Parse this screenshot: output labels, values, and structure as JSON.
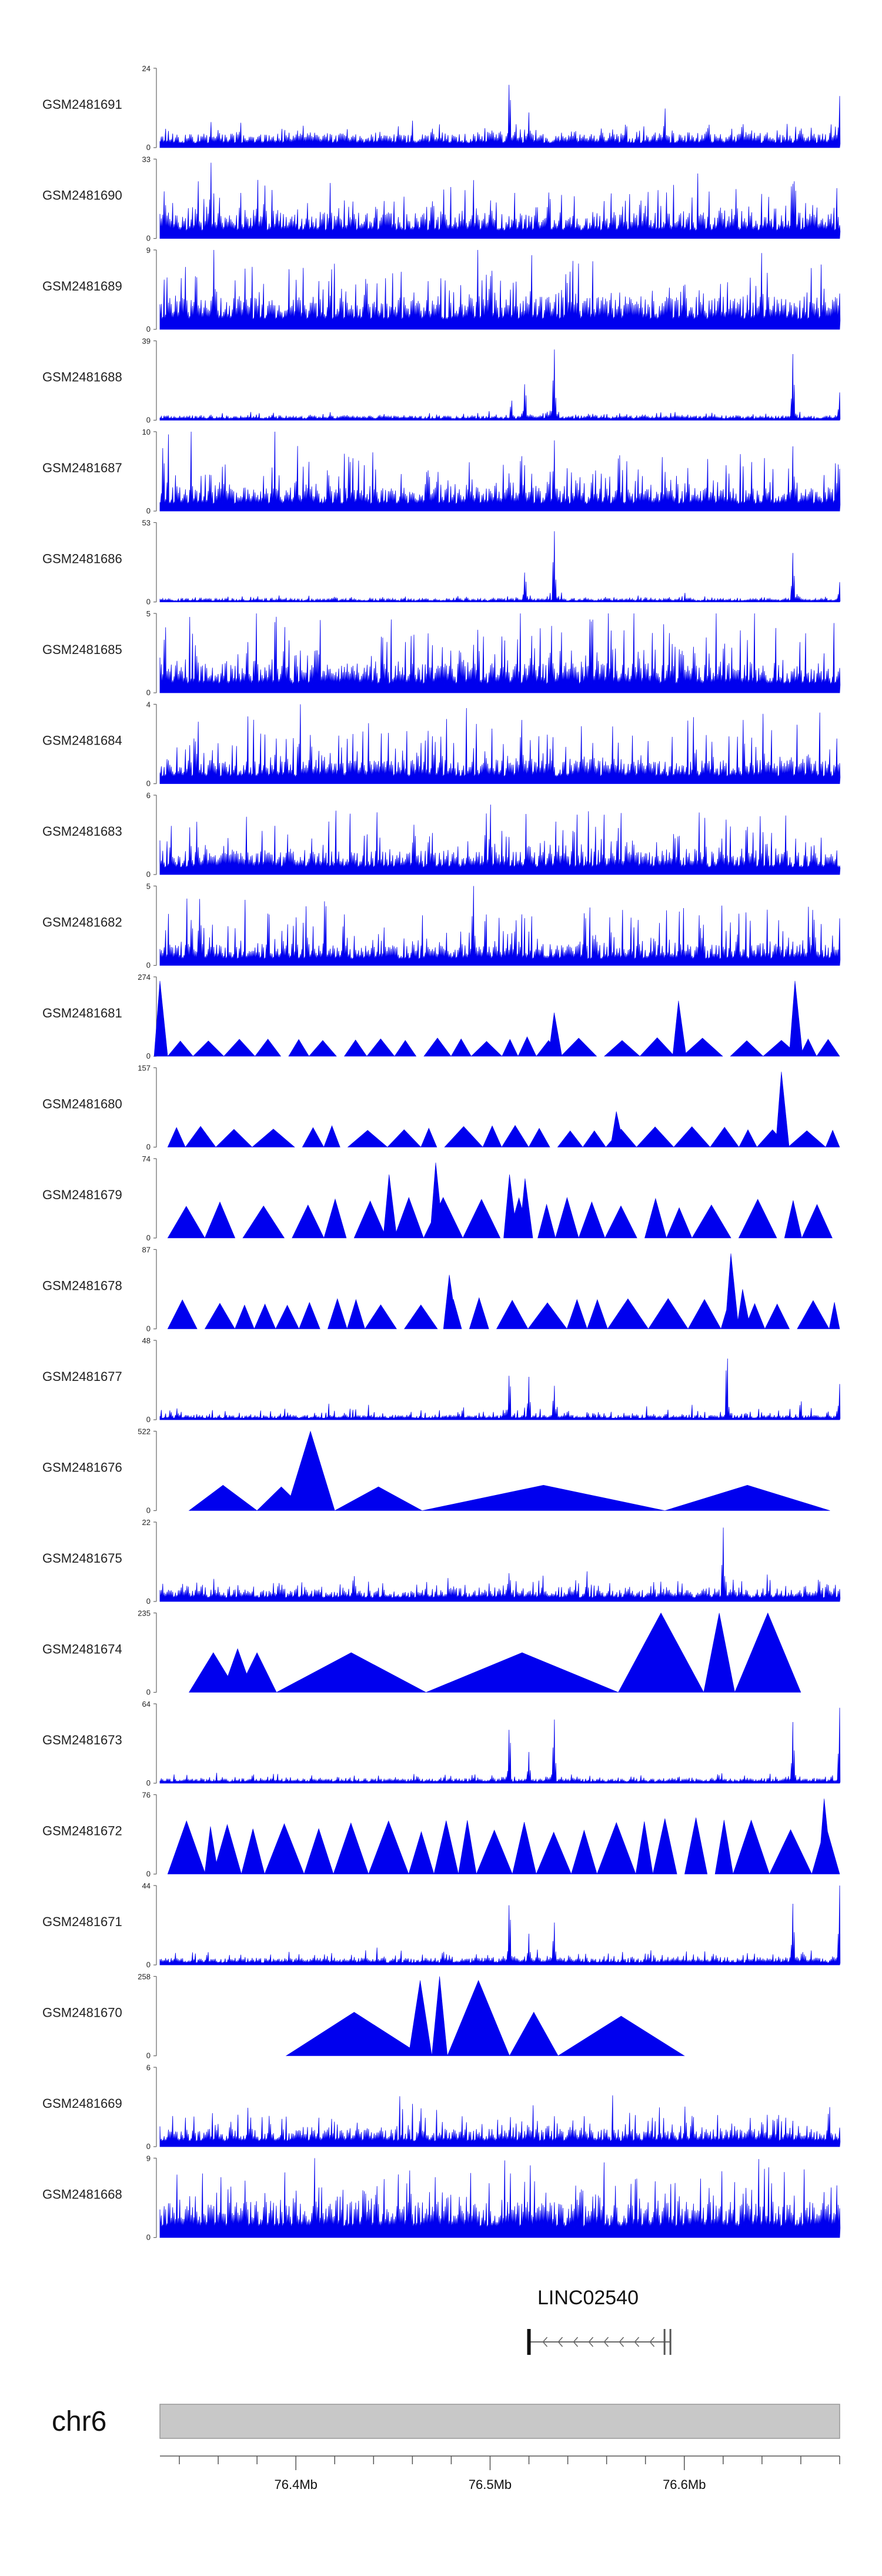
{
  "colors": {
    "signal": "#0000ee",
    "ideogram": "#c8c8c8",
    "axis": "#555555"
  },
  "chart_data": {
    "type": "area",
    "title": "",
    "xlabel": "chr6",
    "xlim": [
      76.33,
      76.68
    ],
    "x_unit": "Mb",
    "x_ticks": [
      "76.4Mb",
      "76.5Mb",
      "76.6Mb"
    ],
    "x_tick_values": [
      76.4,
      76.5,
      76.6
    ],
    "tracks": [
      {
        "name": "GSM2481691",
        "ymax": 24,
        "style": "dense",
        "seed": 91,
        "level": 0.12,
        "noise": 0.18,
        "peaks": [
          [
            76.51,
            1.0
          ],
          [
            76.52,
            0.45
          ],
          [
            76.59,
            0.55
          ],
          [
            76.68,
            0.65
          ],
          [
            76.57,
            0.4
          ],
          [
            76.63,
            0.4
          ]
        ]
      },
      {
        "name": "GSM2481690",
        "ymax": 33,
        "style": "dense",
        "seed": 90,
        "level": 0.22,
        "noise": 0.55,
        "peaks": [
          [
            76.47,
            0.62
          ],
          [
            76.53,
            0.7
          ],
          [
            76.5,
            0.5
          ]
        ]
      },
      {
        "name": "GSM2481689",
        "ymax": 9,
        "style": "dense",
        "seed": 89,
        "level": 0.28,
        "noise": 0.7,
        "peaks": [
          [
            76.5,
            0.85
          ],
          [
            76.6,
            0.8
          ]
        ]
      },
      {
        "name": "GSM2481688",
        "ymax": 39,
        "style": "dense",
        "seed": 88,
        "level": 0.04,
        "noise": 0.06,
        "peaks": [
          [
            76.518,
            0.55
          ],
          [
            76.533,
            1.0
          ],
          [
            76.656,
            0.92
          ],
          [
            76.68,
            0.35
          ],
          [
            76.511,
            0.3
          ]
        ]
      },
      {
        "name": "GSM2481687",
        "ymax": 10,
        "style": "dense",
        "seed": 87,
        "level": 0.2,
        "noise": 0.6,
        "peaks": [
          [
            76.516,
            0.95
          ],
          [
            76.533,
            1.0
          ],
          [
            76.656,
            0.9
          ],
          [
            76.51,
            0.6
          ]
        ]
      },
      {
        "name": "GSM2481686",
        "ymax": 53,
        "style": "dense",
        "seed": 86,
        "level": 0.03,
        "noise": 0.05,
        "peaks": [
          [
            76.518,
            0.45
          ],
          [
            76.533,
            1.0
          ],
          [
            76.656,
            0.68
          ],
          [
            76.68,
            0.25
          ]
        ]
      },
      {
        "name": "GSM2481685",
        "ymax": 5,
        "style": "dense",
        "seed": 85,
        "level": 0.25,
        "noise": 0.85,
        "peaks": []
      },
      {
        "name": "GSM2481684",
        "ymax": 4,
        "style": "dense",
        "seed": 84,
        "level": 0.2,
        "noise": 0.75,
        "peaks": []
      },
      {
        "name": "GSM2481683",
        "ymax": 6,
        "style": "dense",
        "seed": 83,
        "level": 0.2,
        "noise": 0.7,
        "peaks": []
      },
      {
        "name": "GSM2481682",
        "ymax": 5,
        "style": "dense",
        "seed": 82,
        "level": 0.18,
        "noise": 0.7,
        "peaks": []
      },
      {
        "name": "GSM2481681",
        "ymax": 274,
        "style": "tri",
        "seed": 81,
        "base": 0.22,
        "spikes": [
          [
            76.33,
            0.95
          ],
          [
            76.533,
            0.55
          ],
          [
            76.597,
            0.7
          ],
          [
            76.657,
            0.95
          ]
        ]
      },
      {
        "name": "GSM2481680",
        "ymax": 157,
        "style": "tri",
        "seed": 80,
        "base": 0.24,
        "spikes": [
          [
            76.65,
            0.95
          ],
          [
            76.565,
            0.45
          ]
        ]
      },
      {
        "name": "GSM2481679",
        "ymax": 74,
        "style": "tri",
        "seed": 79,
        "base": 0.45,
        "spikes": [
          [
            76.472,
            0.95
          ],
          [
            76.51,
            0.8
          ],
          [
            76.518,
            0.75
          ],
          [
            76.448,
            0.8
          ]
        ]
      },
      {
        "name": "GSM2481678",
        "ymax": 87,
        "style": "tri",
        "seed": 78,
        "base": 0.35,
        "spikes": [
          [
            76.624,
            0.95
          ],
          [
            76.479,
            0.68
          ],
          [
            76.63,
            0.5
          ]
        ]
      },
      {
        "name": "GSM2481677",
        "ymax": 48,
        "style": "dense",
        "seed": 77,
        "level": 0.04,
        "noise": 0.12,
        "peaks": [
          [
            76.622,
            1.0
          ],
          [
            76.51,
            0.7
          ],
          [
            76.52,
            0.55
          ],
          [
            76.533,
            0.48
          ],
          [
            76.68,
            0.45
          ],
          [
            76.66,
            0.3
          ]
        ]
      },
      {
        "name": "GSM2481676",
        "ymax": 522,
        "style": "custom",
        "seed": 76,
        "triangles": [
          [
            76.345,
            76.38,
            0.32
          ],
          [
            76.38,
            76.405,
            0.3
          ],
          [
            76.395,
            76.42,
            1.0
          ],
          [
            76.42,
            76.465,
            0.3
          ],
          [
            76.465,
            76.59,
            0.32
          ],
          [
            76.59,
            76.675,
            0.32
          ]
        ]
      },
      {
        "name": "GSM2481675",
        "ymax": 22,
        "style": "dense",
        "seed": 75,
        "level": 0.1,
        "noise": 0.22,
        "peaks": [
          [
            76.62,
            1.0
          ],
          [
            76.51,
            0.45
          ],
          [
            76.55,
            0.4
          ],
          [
            76.43,
            0.35
          ]
        ]
      },
      {
        "name": "GSM2481674",
        "ymax": 235,
        "style": "custom",
        "seed": 74,
        "triangles": [
          [
            76.345,
            76.37,
            0.5
          ],
          [
            76.362,
            76.378,
            0.55
          ],
          [
            76.37,
            76.39,
            0.5
          ],
          [
            76.39,
            76.467,
            0.5
          ],
          [
            76.467,
            76.566,
            0.5
          ],
          [
            76.566,
            76.61,
            1.0
          ],
          [
            76.61,
            76.626,
            1.0
          ],
          [
            76.626,
            76.66,
            1.0
          ]
        ]
      },
      {
        "name": "GSM2481673",
        "ymax": 64,
        "style": "dense",
        "seed": 73,
        "level": 0.04,
        "noise": 0.08,
        "peaks": [
          [
            76.51,
            0.85
          ],
          [
            76.533,
            0.9
          ],
          [
            76.656,
            0.85
          ],
          [
            76.68,
            0.95
          ],
          [
            76.52,
            0.4
          ]
        ]
      },
      {
        "name": "GSM2481672",
        "ymax": 76,
        "style": "tri",
        "seed": 72,
        "base": 0.62,
        "spikes": [
          [
            76.672,
            0.95
          ],
          [
            76.356,
            0.6
          ]
        ]
      },
      {
        "name": "GSM2481671",
        "ymax": 44,
        "style": "dense",
        "seed": 71,
        "level": 0.06,
        "noise": 0.12,
        "peaks": [
          [
            76.51,
            0.95
          ],
          [
            76.533,
            0.6
          ],
          [
            76.656,
            0.85
          ],
          [
            76.68,
            1.0
          ],
          [
            76.52,
            0.4
          ]
        ]
      },
      {
        "name": "GSM2481670",
        "ymax": 258,
        "style": "custom",
        "seed": 70,
        "triangles": [
          [
            76.395,
            76.465,
            0.55
          ],
          [
            76.458,
            76.47,
            0.95
          ],
          [
            76.47,
            76.478,
            1.0
          ],
          [
            76.478,
            76.51,
            0.95
          ],
          [
            76.51,
            76.535,
            0.55
          ],
          [
            76.535,
            76.6,
            0.5
          ]
        ]
      },
      {
        "name": "GSM2481669",
        "ymax": 6,
        "style": "dense",
        "seed": 69,
        "level": 0.15,
        "noise": 0.5,
        "peaks": []
      },
      {
        "name": "GSM2481668",
        "ymax": 9,
        "style": "dense",
        "seed": 68,
        "level": 0.3,
        "noise": 0.7,
        "peaks": []
      }
    ],
    "gene": {
      "name": "LINC02540",
      "start": 76.52,
      "end": 76.593,
      "strand": "-"
    },
    "chromosome": "chr6"
  }
}
